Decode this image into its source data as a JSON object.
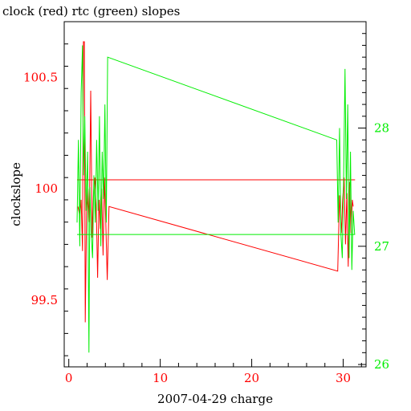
{
  "chart_data": {
    "type": "line",
    "title": "clock (red) rtc (green) slopes",
    "xlabel": "2007-04-29 charge",
    "ylabel": "clockslope",
    "xlim": [
      -0.5,
      32.5
    ],
    "ylim": [
      99.2,
      100.75
    ],
    "y2lim": [
      25.98,
      28.9
    ],
    "x_ticks": [
      0,
      10,
      20,
      30
    ],
    "y_ticks": [
      99.5,
      100,
      100.5
    ],
    "y2_ticks": [
      26,
      27,
      28
    ],
    "x_tick_labels": [
      "0",
      "10",
      "20",
      "30"
    ],
    "y_tick_labels": [
      "99.5",
      "100",
      "100.5"
    ],
    "y2_tick_labels": [
      "26",
      "27",
      "28"
    ],
    "grid": false,
    "colors": {
      "clock": "#ff0000",
      "rtc": "#00ee00",
      "axis": "#000000"
    },
    "series": [
      {
        "axis": "left",
        "color": "#ff0000",
        "x": [
          1.0,
          1.2,
          1.35,
          1.5,
          1.6,
          1.7,
          1.8,
          1.95,
          2.1,
          2.25,
          2.4,
          2.55,
          2.7,
          2.85,
          3.0,
          3.15,
          3.3,
          3.45,
          3.6,
          3.75,
          3.9,
          4.05,
          4.2,
          4.4,
          29.4,
          29.6,
          29.8,
          29.95,
          30.1,
          30.25,
          30.4,
          30.55,
          30.7,
          30.85,
          31.0,
          31.1
        ],
        "values": [
          99.92,
          99.88,
          99.95,
          99.72,
          100.66,
          100.66,
          99.4,
          99.9,
          100.0,
          99.85,
          100.44,
          99.78,
          99.98,
          100.05,
          99.93,
          99.6,
          99.95,
          99.82,
          100.0,
          99.7,
          100.05,
          99.85,
          99.59,
          99.92,
          99.63,
          99.97,
          99.8,
          99.95,
          100.05,
          99.75,
          99.98,
          99.65,
          100.03,
          99.8,
          99.95,
          99.92
        ]
      },
      {
        "axis": "left",
        "color": "#ff0000",
        "x": [
          0.9,
          31.3
        ],
        "values": [
          100.04,
          100.04
        ]
      },
      {
        "axis": "right",
        "color": "#00ee00",
        "x": [
          0.9,
          1.05,
          1.2,
          1.35,
          1.5,
          1.6,
          1.75,
          1.9,
          2.05,
          2.2,
          2.3,
          2.45,
          2.6,
          2.75,
          2.9,
          3.05,
          3.2,
          3.35,
          3.5,
          3.65,
          3.8,
          3.95,
          4.1,
          4.25,
          29.3,
          29.45,
          29.6,
          29.75,
          29.9,
          30.05,
          30.2,
          30.35,
          30.5,
          30.65,
          30.8,
          30.95,
          31.1,
          31.25
        ],
        "values": [
          27.2,
          27.9,
          27.0,
          28.3,
          28.7,
          27.6,
          28.1,
          27.3,
          27.8,
          26.1,
          27.5,
          27.1,
          26.9,
          27.6,
          27.2,
          27.9,
          27.3,
          28.1,
          27.0,
          27.8,
          27.4,
          28.2,
          27.2,
          28.6,
          27.9,
          27.2,
          28.0,
          27.1,
          26.9,
          27.6,
          28.5,
          27.4,
          28.2,
          26.9,
          27.8,
          26.8,
          27.3,
          27.1
        ]
      },
      {
        "axis": "right",
        "color": "#00ee00",
        "x": [
          0.9,
          31.3
        ],
        "values": [
          27.1,
          27.1
        ]
      }
    ]
  }
}
